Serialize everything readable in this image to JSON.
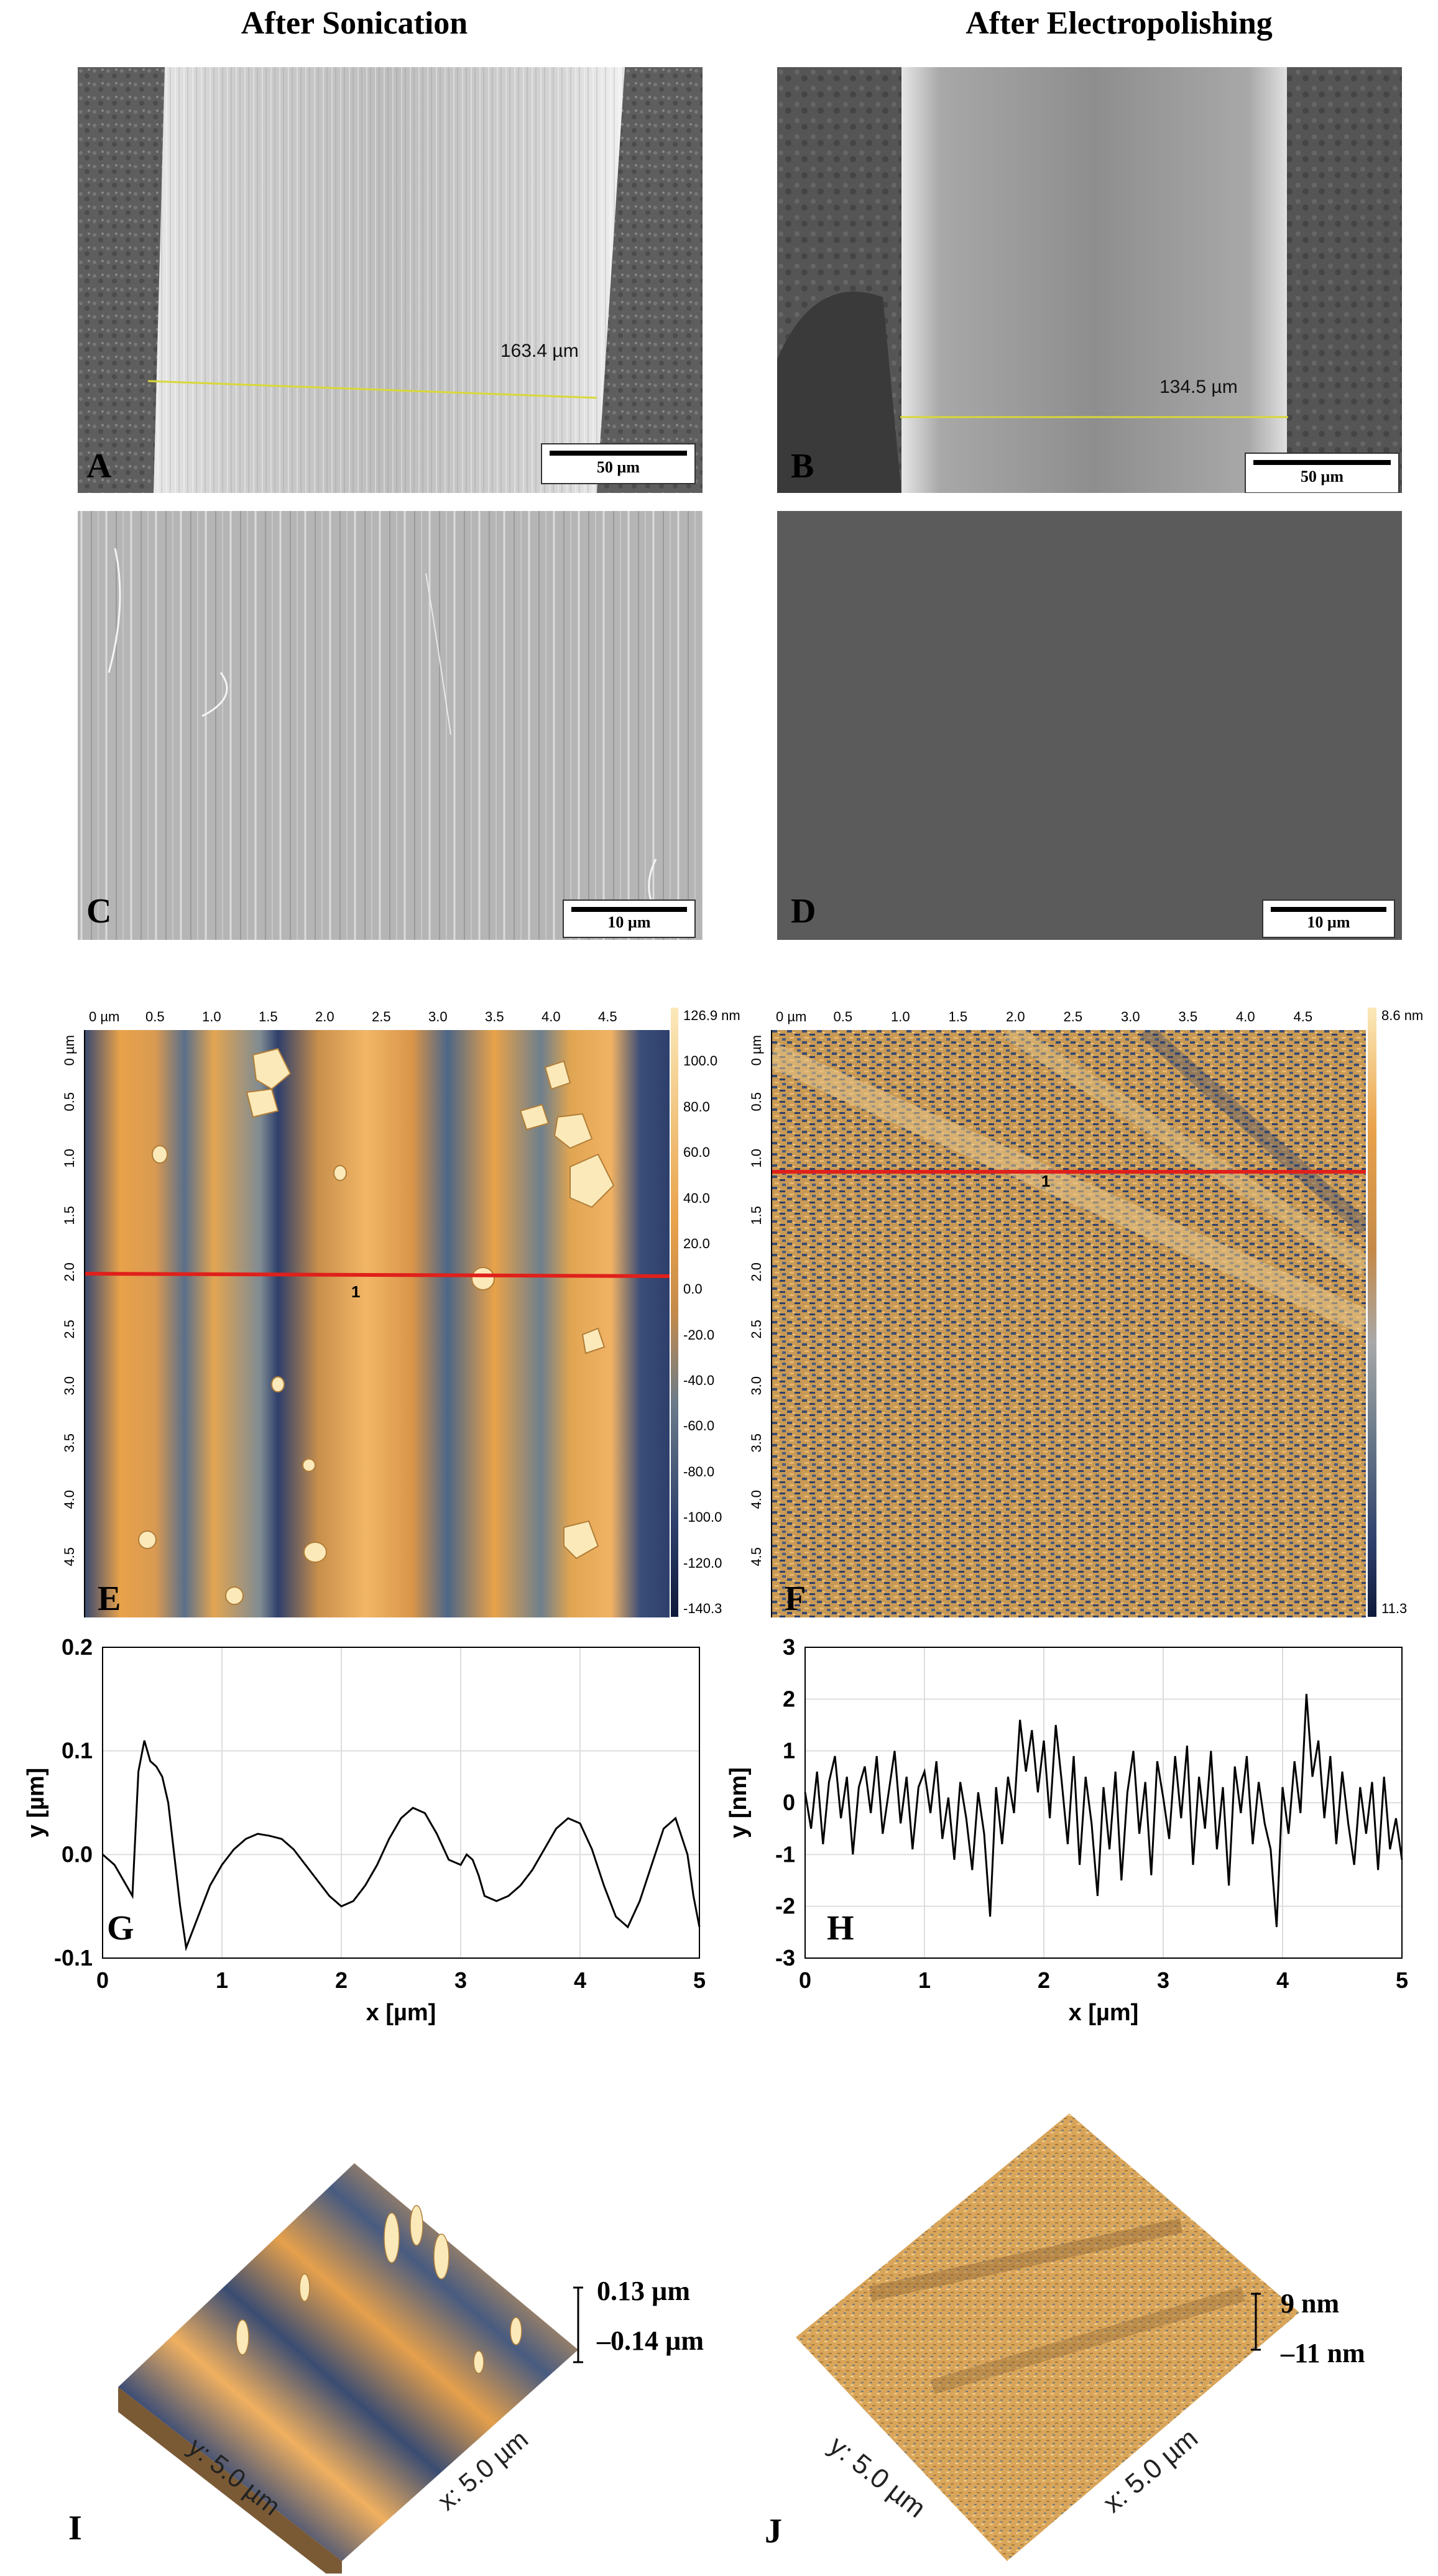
{
  "columns": {
    "left_title": "After Sonication",
    "right_title": "After Electropolishing"
  },
  "sem": {
    "A": {
      "letter": "A",
      "measurement": "163.4 µm",
      "scalebar": "50 µm"
    },
    "B": {
      "letter": "B",
      "measurement": "134.5 µm",
      "scalebar": "50 µm"
    },
    "C": {
      "letter": "C",
      "scalebar": "10 µm"
    },
    "D": {
      "letter": "D",
      "scalebar": "10 µm"
    }
  },
  "afm": {
    "E": {
      "letter": "E",
      "profile_line_label": "1",
      "x_ticks": [
        "0 µm",
        "0.5",
        "1.0",
        "1.5",
        "2.0",
        "2.5",
        "3.0",
        "3.5",
        "4.0",
        "4.5"
      ],
      "y_ticks": [
        "0 µm",
        "0.5",
        "1.0",
        "1.5",
        "2.0",
        "2.5",
        "3.0",
        "3.5",
        "4.0",
        "4.5"
      ],
      "colorbar_ticks": [
        "126.9 nm",
        "100.0",
        "80.0",
        "60.0",
        "40.0",
        "20.0",
        "0.0",
        "-20.0",
        "-40.0",
        "-60.0",
        "-80.0",
        "-100.0",
        "-120.0",
        "-140.3"
      ]
    },
    "F": {
      "letter": "F",
      "profile_line_label": "1",
      "x_ticks": [
        "0 µm",
        "0.5",
        "1.0",
        "1.5",
        "2.0",
        "2.5",
        "3.0",
        "3.5",
        "4.0",
        "4.5"
      ],
      "y_ticks": [
        "0 µm",
        "0.5",
        "1.0",
        "1.5",
        "2.0",
        "2.5",
        "3.0",
        "3.5",
        "4.0",
        "4.5"
      ],
      "colorbar_ticks": [
        "8.6 nm",
        "11.3"
      ]
    }
  },
  "chart_data": [
    {
      "type": "line",
      "panel": "G",
      "xlabel": "x [µm]",
      "ylabel": "y [µm]",
      "xlim": [
        0,
        5
      ],
      "ylim": [
        -0.1,
        0.2
      ],
      "x_ticks": [
        "0",
        "1",
        "2",
        "3",
        "4",
        "5"
      ],
      "y_ticks": [
        "0.2",
        "0.1",
        "0.0",
        "-0.1"
      ],
      "x": [
        0,
        0.1,
        0.2,
        0.25,
        0.3,
        0.35,
        0.4,
        0.45,
        0.5,
        0.55,
        0.6,
        0.65,
        0.7,
        0.8,
        0.9,
        1.0,
        1.1,
        1.2,
        1.3,
        1.4,
        1.5,
        1.6,
        1.7,
        1.8,
        1.9,
        2.0,
        2.1,
        2.2,
        2.3,
        2.4,
        2.5,
        2.6,
        2.7,
        2.8,
        2.9,
        3.0,
        3.05,
        3.1,
        3.15,
        3.2,
        3.3,
        3.4,
        3.5,
        3.6,
        3.7,
        3.8,
        3.9,
        4.0,
        4.1,
        4.2,
        4.3,
        4.4,
        4.5,
        4.6,
        4.7,
        4.8,
        4.9,
        4.95,
        5.0
      ],
      "y": [
        0.0,
        -0.01,
        -0.03,
        -0.04,
        0.08,
        0.11,
        0.09,
        0.085,
        0.075,
        0.05,
        0.0,
        -0.05,
        -0.09,
        -0.06,
        -0.03,
        -0.01,
        0.005,
        0.015,
        0.02,
        0.018,
        0.015,
        0.005,
        -0.01,
        -0.025,
        -0.04,
        -0.05,
        -0.045,
        -0.03,
        -0.01,
        0.015,
        0.035,
        0.045,
        0.04,
        0.02,
        -0.005,
        -0.01,
        0.0,
        -0.005,
        -0.02,
        -0.04,
        -0.045,
        -0.04,
        -0.03,
        -0.015,
        0.005,
        0.025,
        0.035,
        0.03,
        0.005,
        -0.03,
        -0.06,
        -0.07,
        -0.045,
        -0.01,
        0.025,
        0.035,
        0.0,
        -0.04,
        -0.07
      ]
    },
    {
      "type": "line",
      "panel": "H",
      "xlabel": "x [µm]",
      "ylabel": "y [nm]",
      "xlim": [
        0,
        5
      ],
      "ylim": [
        -3,
        3
      ],
      "x_ticks": [
        "0",
        "1",
        "2",
        "3",
        "4",
        "5"
      ],
      "y_ticks": [
        "3",
        "2",
        "1",
        "0",
        "-1",
        "-2",
        "-3"
      ],
      "x": [
        0,
        0.05,
        0.1,
        0.15,
        0.2,
        0.25,
        0.3,
        0.35,
        0.4,
        0.45,
        0.5,
        0.55,
        0.6,
        0.65,
        0.7,
        0.75,
        0.8,
        0.85,
        0.9,
        0.95,
        1.0,
        1.05,
        1.1,
        1.15,
        1.2,
        1.25,
        1.3,
        1.35,
        1.4,
        1.45,
        1.5,
        1.55,
        1.6,
        1.65,
        1.7,
        1.75,
        1.8,
        1.85,
        1.9,
        1.95,
        2.0,
        2.05,
        2.1,
        2.15,
        2.2,
        2.25,
        2.3,
        2.35,
        2.4,
        2.45,
        2.5,
        2.55,
        2.6,
        2.65,
        2.7,
        2.75,
        2.8,
        2.85,
        2.9,
        2.95,
        3.0,
        3.05,
        3.1,
        3.15,
        3.2,
        3.25,
        3.3,
        3.35,
        3.4,
        3.45,
        3.5,
        3.55,
        3.6,
        3.65,
        3.7,
        3.75,
        3.8,
        3.85,
        3.9,
        3.95,
        4.0,
        4.05,
        4.1,
        4.15,
        4.2,
        4.25,
        4.3,
        4.35,
        4.4,
        4.45,
        4.5,
        4.55,
        4.6,
        4.65,
        4.7,
        4.75,
        4.8,
        4.85,
        4.9,
        4.95,
        5.0
      ],
      "y": [
        0.2,
        -0.5,
        0.6,
        -0.8,
        0.4,
        0.9,
        -0.3,
        0.5,
        -1.0,
        0.3,
        0.7,
        -0.2,
        0.9,
        -0.6,
        0.2,
        1.0,
        -0.4,
        0.5,
        -0.9,
        0.3,
        0.6,
        -0.2,
        0.8,
        -0.7,
        0.1,
        -1.1,
        0.4,
        -0.3,
        -1.3,
        0.2,
        -0.6,
        -2.2,
        0.3,
        -0.8,
        0.5,
        -0.2,
        1.6,
        0.6,
        1.4,
        0.2,
        1.2,
        -0.3,
        1.5,
        0.4,
        -0.8,
        0.9,
        -1.2,
        0.5,
        -0.4,
        -1.8,
        0.3,
        -0.9,
        0.6,
        -1.5,
        0.2,
        1.0,
        -0.6,
        0.4,
        -1.4,
        0.8,
        0.1,
        -0.7,
        0.9,
        -0.3,
        1.1,
        -1.2,
        0.5,
        -0.5,
        1.0,
        -0.9,
        0.3,
        -1.6,
        0.7,
        -0.2,
        0.9,
        -0.8,
        0.4,
        -0.4,
        -0.9,
        -2.4,
        0.3,
        -0.6,
        0.8,
        -0.2,
        2.1,
        0.5,
        1.2,
        -0.3,
        0.9,
        -0.8,
        0.6,
        -0.4,
        -1.2,
        0.3,
        -0.6,
        0.4,
        -1.3,
        0.5,
        -0.9,
        -0.3,
        -1.1
      ]
    }
  ],
  "afm3d": {
    "I": {
      "letter": "I",
      "y_axis": "y: 5.0 µm",
      "x_axis": "x: 5.0 µm",
      "z_max": "0.13 µm",
      "z_min": "–0.14 µm"
    },
    "J": {
      "letter": "J",
      "y_axis": "y: 5.0 µm",
      "x_axis": "x: 5.0 µm",
      "z_max": "9 nm",
      "z_min": "–11 nm"
    }
  },
  "colors": {
    "afm_orange": "#E9A24A",
    "afm_blue": "#2E3F6B",
    "profile_red": "#E0201B",
    "sem_light": "#BDBDBD",
    "sem_dark": "#5A5A5A"
  }
}
